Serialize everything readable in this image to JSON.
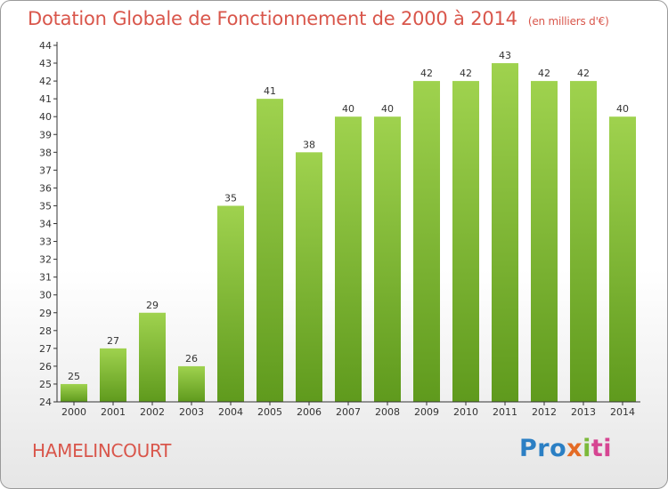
{
  "header": {
    "title": "Dotation Globale de Fonctionnement de 2000 à 2014",
    "unit": "(en milliers d'€)"
  },
  "footer": {
    "commune": "HAMELINCOURT",
    "logo": [
      "Pro",
      "x",
      "i",
      "ti"
    ]
  },
  "colors": {
    "title": "#d9564b",
    "bar_top": "#9fd24e",
    "bar_bottom": "#5f9a1d"
  },
  "chart_data": {
    "type": "bar",
    "title": "Dotation Globale de Fonctionnement de 2000 à 2014",
    "subtitle": "(en milliers d'€)",
    "xlabel": "",
    "ylabel": "",
    "ylim": [
      24,
      44
    ],
    "yticks": [
      24,
      25,
      26,
      27,
      28,
      29,
      30,
      31,
      32,
      33,
      34,
      35,
      36,
      37,
      38,
      39,
      40,
      41,
      42,
      43,
      44
    ],
    "grid": false,
    "categories": [
      "2000",
      "2001",
      "2002",
      "2003",
      "2004",
      "2005",
      "2006",
      "2007",
      "2008",
      "2009",
      "2010",
      "2011",
      "2012",
      "2013",
      "2014"
    ],
    "values": [
      25,
      27,
      29,
      26,
      35,
      41,
      38,
      40,
      40,
      42,
      42,
      43,
      42,
      42,
      40
    ]
  }
}
